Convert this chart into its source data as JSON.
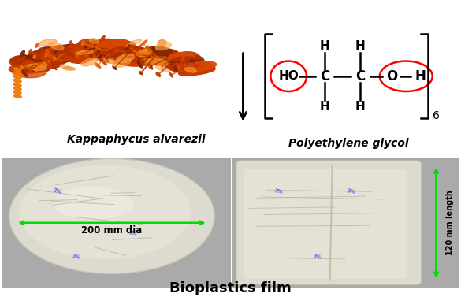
{
  "title": "Bioplastics film",
  "title_fontsize": 13,
  "seaweed_label": "Kappaphycus alvarezii",
  "polymer_label": "Polyethylene glycol",
  "annotation_200mm": "200 mm dia",
  "annotation_120mm": "120 mm length",
  "annotation_color": "#00dd00",
  "bg_color": "#ffffff",
  "figure_width": 5.85,
  "figure_height": 3.77,
  "dpi": 100,
  "seaweed_colors": [
    "#c43a00",
    "#b03000",
    "#d94800",
    "#8b2500",
    "#e05a00",
    "#922800",
    "#f07000",
    "#7a2000"
  ],
  "film_bg_light": "#e8e4d4",
  "film_bg_gray": "#b8b8b8",
  "photo_bg_dark": "#9a9a9a"
}
